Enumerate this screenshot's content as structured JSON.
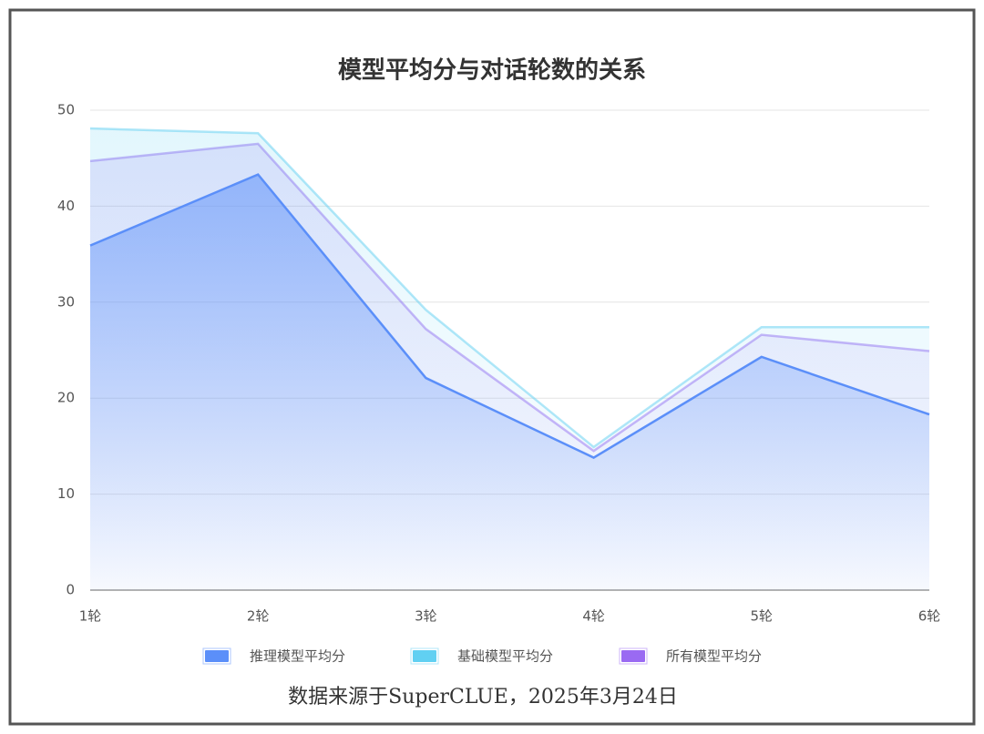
{
  "chart_data": {
    "type": "area",
    "title": "模型平均分与对话轮数的关系",
    "categories": [
      "1轮",
      "2轮",
      "3轮",
      "4轮",
      "5轮",
      "6轮"
    ],
    "series": [
      {
        "name": "推理模型平均分",
        "color": "#5b8ff9",
        "values": [
          35.9,
          43.3,
          22.1,
          13.8,
          24.3,
          18.3
        ]
      },
      {
        "name": "基础模型平均分",
        "color": "#61d0f2",
        "values": [
          48.1,
          47.6,
          29.2,
          14.9,
          27.4,
          27.4
        ]
      },
      {
        "name": "所有模型平均分",
        "color": "#9a6af2",
        "values": [
          44.7,
          46.5,
          27.2,
          14.5,
          26.6,
          24.9
        ]
      }
    ],
    "ylim": [
      0,
      50
    ],
    "yticks": [
      0,
      10,
      20,
      30,
      40,
      50
    ],
    "grid": true,
    "source": "数据来源于SuperCLUE，2025年3月24日"
  }
}
